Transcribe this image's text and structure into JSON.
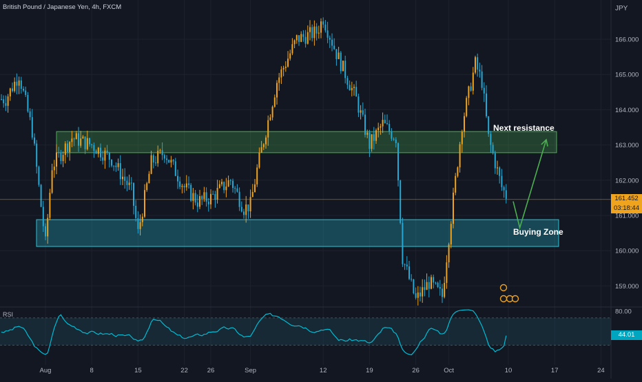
{
  "header": {
    "title": "British Pound / Japanese Yen, 4h, FXCM",
    "currency": "JPY"
  },
  "price_label": {
    "price": "161.452",
    "countdown": "03:18:44"
  },
  "rsi_panel": {
    "name": "RSI",
    "value": "44.01",
    "upper_band": 70,
    "lower_band": 30,
    "top_tick": "80.00"
  },
  "annotations": {
    "resistance_label": "Next resistance",
    "buying_label": "Buying Zone"
  },
  "colors": {
    "background": "#131722",
    "bull_candle": "#f0a41d",
    "bear_candle": "#26a8d4",
    "resistance_zone": "#4caf50",
    "buying_zone": "#26c6da",
    "arrow": "#4caf50",
    "rsi_line": "#00bcd4"
  },
  "chart_data": {
    "type": "candlestick",
    "y_axis_ticks": [
      "166.000",
      "165.000",
      "164.000",
      "163.000",
      "162.000",
      "161.000",
      "160.000",
      "159.000"
    ],
    "x_axis_ticks": [
      "Aug",
      "8",
      "15",
      "22",
      "26",
      "Sep",
      "12",
      "19",
      "26",
      "Oct",
      "10",
      "17",
      "24"
    ],
    "ylim": [
      158.5,
      166.9
    ],
    "last_price": 161.452,
    "zones": [
      {
        "label": "Next resistance",
        "low": 162.78,
        "high": 163.38
      },
      {
        "label": "Buying Zone",
        "low": 160.12,
        "high": 160.88
      }
    ],
    "close_path": [
      {
        "x": "Jul 26",
        "y": 164.3
      },
      {
        "x": "Jul 28",
        "y": 165.0
      },
      {
        "x": "Jul 30",
        "y": 163.4
      },
      {
        "x": "Aug 1",
        "y": 160.2
      },
      {
        "x": "Aug 2",
        "y": 162.4
      },
      {
        "x": "Aug 5",
        "y": 163.2
      },
      {
        "x": "Aug 8",
        "y": 163.0
      },
      {
        "x": "Aug 11",
        "y": 162.6
      },
      {
        "x": "Aug 14",
        "y": 161.7
      },
      {
        "x": "Aug 15",
        "y": 160.5
      },
      {
        "x": "Aug 17",
        "y": 162.5
      },
      {
        "x": "Aug 19",
        "y": 162.8
      },
      {
        "x": "Aug 22",
        "y": 161.8
      },
      {
        "x": "Aug 24",
        "y": 161.4
      },
      {
        "x": "Aug 26",
        "y": 161.5
      },
      {
        "x": "Aug 29",
        "y": 162.0
      },
      {
        "x": "Aug 31",
        "y": 161.2
      },
      {
        "x": "Sep 1",
        "y": 161.3
      },
      {
        "x": "Sep 2",
        "y": 162.3
      },
      {
        "x": "Sep 5",
        "y": 164.8
      },
      {
        "x": "Sep 8",
        "y": 166.0
      },
      {
        "x": "Sep 11",
        "y": 166.2
      },
      {
        "x": "Sep 12",
        "y": 166.6
      },
      {
        "x": "Sep 14",
        "y": 165.6
      },
      {
        "x": "Sep 17",
        "y": 164.3
      },
      {
        "x": "Sep 19",
        "y": 163.0
      },
      {
        "x": "Sep 21",
        "y": 163.6
      },
      {
        "x": "Sep 23",
        "y": 163.2
      },
      {
        "x": "Sep 24",
        "y": 159.8
      },
      {
        "x": "Sep 26",
        "y": 158.6
      },
      {
        "x": "Sep 28",
        "y": 159.1
      },
      {
        "x": "Sep 30",
        "y": 158.7
      },
      {
        "x": "Oct 1",
        "y": 160.4
      },
      {
        "x": "Oct 3",
        "y": 163.6
      },
      {
        "x": "Oct 5",
        "y": 165.3
      },
      {
        "x": "Oct 6",
        "y": 164.8
      },
      {
        "x": "Oct 7",
        "y": 163.2
      },
      {
        "x": "Oct 9",
        "y": 161.8
      },
      {
        "x": "Oct 10",
        "y": 161.45
      }
    ],
    "projection": [
      {
        "x": "Oct 10",
        "y": 161.4
      },
      {
        "x": "Oct 11",
        "y": 160.65
      },
      {
        "x": "Oct 15",
        "y": 163.15
      }
    ],
    "rsi": {
      "ylim": [
        0,
        100
      ],
      "bands": [
        30,
        70
      ],
      "last": 44.01
    }
  }
}
